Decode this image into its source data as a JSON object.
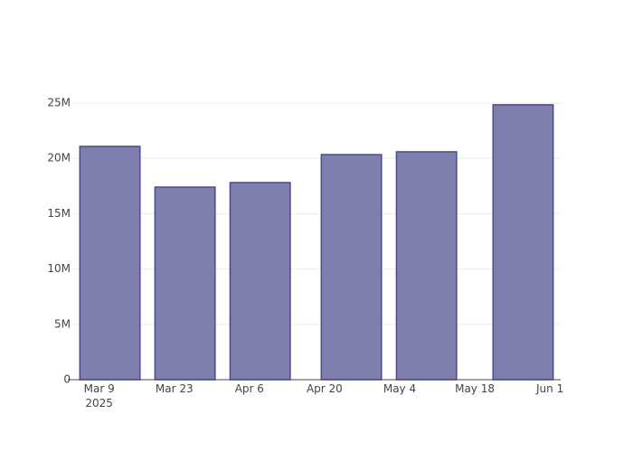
{
  "chart_data": {
    "type": "bar",
    "x": [
      "2025-03-11",
      "2025-03-25",
      "2025-04-08",
      "2025-04-25",
      "2025-05-09",
      "2025-05-27"
    ],
    "values": [
      21080000,
      17400000,
      17810000,
      20340000,
      20590000,
      24840000
    ],
    "color": "#7e7eaf",
    "line_color": "#4b4b88",
    "xlim": [
      "2025-03-04",
      "2025-06-03"
    ],
    "xticks": [
      {
        "value": "2025-03-09",
        "label": "Mar 9\n2025"
      },
      {
        "value": "2025-03-23",
        "label": "Mar 23"
      },
      {
        "value": "2025-04-06",
        "label": "Apr 6"
      },
      {
        "value": "2025-04-20",
        "label": "Apr 20"
      },
      {
        "value": "2025-05-04",
        "label": "May 4"
      },
      {
        "value": "2025-05-18",
        "label": "May 18"
      },
      {
        "value": "2025-06-01",
        "label": "Jun 1"
      }
    ],
    "ylim": [
      0,
      26140000
    ],
    "yticks": [
      0,
      {
        "value": 5000000,
        "label": "5M"
      },
      {
        "value": 10000000,
        "label": "10M"
      },
      {
        "value": 15000000,
        "label": "15M"
      },
      {
        "value": 20000000,
        "label": "20M"
      },
      {
        "value": 25000000,
        "label": "25M"
      }
    ],
    "grid": true
  }
}
